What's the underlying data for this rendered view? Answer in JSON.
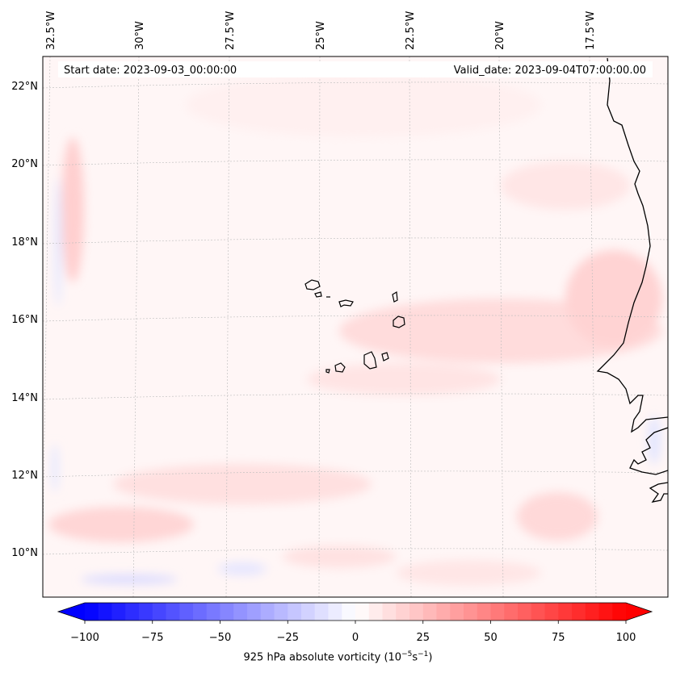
{
  "header": {
    "start_date": "Start date: 2023-09-03_00:00:00",
    "valid_date": "Valid_date: 2023-09-04T07:00:00.00"
  },
  "map": {
    "lon_labels": [
      "32.5°W",
      "30°W",
      "27.5°W",
      "25°W",
      "22.5°W",
      "20°W",
      "17.5°W"
    ],
    "lat_labels": [
      "22°N",
      "20°N",
      "18°N",
      "16°N",
      "14°N",
      "12°N",
      "10°N"
    ],
    "colors": {
      "negative_max": "#0000ff",
      "positive_max": "#ff0000",
      "neutral": "#ffffff",
      "coastline": "#000000",
      "gridline": "#bbbbbb"
    }
  },
  "colorbar": {
    "ticks": [
      "−100",
      "−75",
      "−50",
      "−25",
      "0",
      "25",
      "50",
      "75",
      "100"
    ],
    "label_prefix": "925 hPa absolute vorticity (10",
    "label_exp1": "−5",
    "label_mid": "s",
    "label_exp2": "−1",
    "label_suffix": ")"
  }
}
